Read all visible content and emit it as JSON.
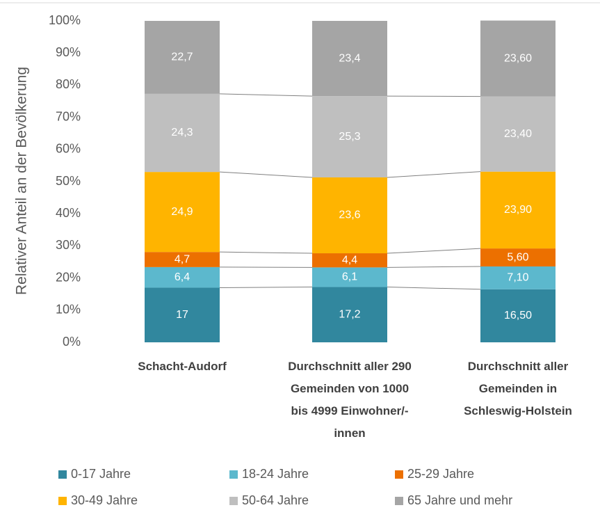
{
  "chart_data": {
    "type": "stacked_bar",
    "y_label": "Relativer Anteil an der Bevölkerung",
    "categories": [
      "Schacht-Audorf",
      "Durchschnitt aller 290 Gemeinden von 1000 bis 4999 Einwohner/-innen",
      "Durchschnitt aller Gemeinden in Schleswig-Holstein"
    ],
    "series": [
      {
        "name": "0-17 Jahre",
        "color": "#31879e",
        "values": [
          17,
          17.2,
          16.5
        ],
        "value_labels": [
          "17",
          "17,2",
          "16,50"
        ]
      },
      {
        "name": "18-24 Jahre",
        "color": "#5cb8cd",
        "values": [
          6.4,
          6.1,
          7.1
        ],
        "value_labels": [
          "6,4",
          "6,1",
          "7,10"
        ]
      },
      {
        "name": "25-29 Jahre",
        "color": "#ec7000",
        "values": [
          4.7,
          4.4,
          5.6
        ],
        "value_labels": [
          "4,7",
          "4,4",
          "5,60"
        ]
      },
      {
        "name": "30-49 Jahre",
        "color": "#ffb400",
        "values": [
          24.9,
          23.6,
          23.9
        ],
        "value_labels": [
          "24,9",
          "23,6",
          "23,90"
        ]
      },
      {
        "name": "50-64 Jahre",
        "color": "#bfbfbf",
        "values": [
          24.3,
          25.3,
          23.4
        ],
        "value_labels": [
          "24,3",
          "25,3",
          "23,40"
        ]
      },
      {
        "name": "65 Jahre und mehr",
        "color": "#a5a5a5",
        "values": [
          22.7,
          23.4,
          23.6
        ],
        "value_labels": [
          "22,7",
          "23,4",
          "23,60"
        ]
      }
    ],
    "ylim": [
      0,
      100
    ],
    "yticks": [
      {
        "value": 0,
        "label": "0%"
      },
      {
        "value": 10,
        "label": "10%"
      },
      {
        "value": 20,
        "label": "20%"
      },
      {
        "value": 30,
        "label": "30%"
      },
      {
        "value": 40,
        "label": "40%"
      },
      {
        "value": 50,
        "label": "50%"
      },
      {
        "value": 60,
        "label": "60%"
      },
      {
        "value": 70,
        "label": "70%"
      },
      {
        "value": 80,
        "label": "80%"
      },
      {
        "value": 90,
        "label": "90%"
      },
      {
        "value": 100,
        "label": "100%"
      }
    ],
    "legend": "bottom",
    "connectors": true
  }
}
